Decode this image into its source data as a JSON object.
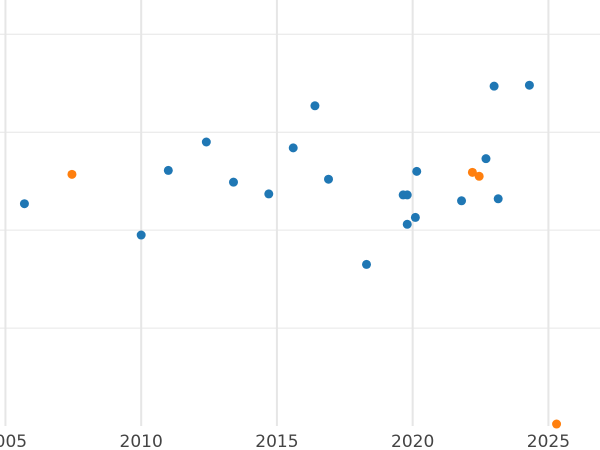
{
  "chart_data": {
    "type": "scatter",
    "title": "",
    "xlabel": "",
    "ylabel": "",
    "grid": true,
    "legend": "none",
    "xlim": [
      2004.8,
      2026.9
    ],
    "ylim": [
      0,
      4.35
    ],
    "x_ticks": [
      2005,
      2010,
      2015,
      2020,
      2025
    ],
    "x_tick_labels": [
      "2005",
      "2010",
      "2015",
      "2020",
      "2025"
    ],
    "y_gridlines": [
      1,
      2,
      3,
      4
    ],
    "series": [
      {
        "color": "#1f77b4",
        "points": [
          {
            "x": 2005.7,
            "y": 2.27
          },
          {
            "x": 2010.0,
            "y": 1.95
          },
          {
            "x": 2011.0,
            "y": 2.61
          },
          {
            "x": 2012.4,
            "y": 2.9
          },
          {
            "x": 2013.4,
            "y": 2.49
          },
          {
            "x": 2014.7,
            "y": 2.37
          },
          {
            "x": 2015.6,
            "y": 2.84
          },
          {
            "x": 2016.4,
            "y": 3.27
          },
          {
            "x": 2016.9,
            "y": 2.52
          },
          {
            "x": 2018.3,
            "y": 1.65
          },
          {
            "x": 2019.65,
            "y": 2.36
          },
          {
            "x": 2019.8,
            "y": 2.36
          },
          {
            "x": 2019.8,
            "y": 2.06
          },
          {
            "x": 2020.1,
            "y": 2.13
          },
          {
            "x": 2020.15,
            "y": 2.6
          },
          {
            "x": 2021.8,
            "y": 2.3
          },
          {
            "x": 2022.7,
            "y": 2.73
          },
          {
            "x": 2023.0,
            "y": 3.47
          },
          {
            "x": 2023.15,
            "y": 2.32
          },
          {
            "x": 2024.3,
            "y": 3.48
          }
        ]
      },
      {
        "color": "#ff7f0e",
        "points": [
          {
            "x": 2007.45,
            "y": 2.57
          },
          {
            "x": 2022.2,
            "y": 2.59
          },
          {
            "x": 2022.45,
            "y": 2.55
          },
          {
            "x": 2025.3,
            "y": 0.02
          }
        ]
      }
    ]
  }
}
